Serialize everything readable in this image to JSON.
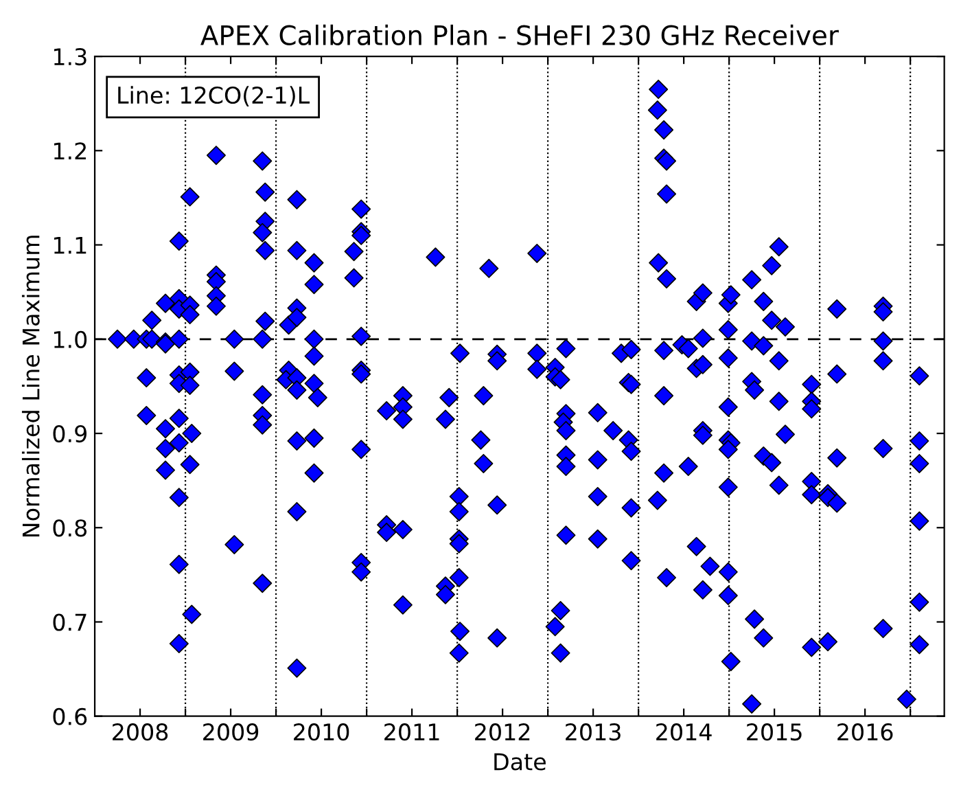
{
  "chart_data": {
    "type": "scatter",
    "title": "APEX Calibration Plan - SHeFI 230 GHz Receiver",
    "xlabel": "Date",
    "ylabel": "Normalized Line Maximum",
    "annotations": [
      "Line: 12CO(2-1)L"
    ],
    "marker": "diamond",
    "grid": false,
    "xlim": [
      2007.5,
      2016.875
    ],
    "ylim": [
      0.6,
      1.3
    ],
    "xticks": [
      {
        "value": 2008,
        "label": "2008"
      },
      {
        "value": 2008.5,
        "label": null
      },
      {
        "value": 2009,
        "label": "2009"
      },
      {
        "value": 2009.5,
        "label": null
      },
      {
        "value": 2010,
        "label": "2010"
      },
      {
        "value": 2010.5,
        "label": null
      },
      {
        "value": 2011,
        "label": "2011"
      },
      {
        "value": 2011.5,
        "label": null
      },
      {
        "value": 2012,
        "label": "2012"
      },
      {
        "value": 2012.5,
        "label": null
      },
      {
        "value": 2013,
        "label": "2013"
      },
      {
        "value": 2013.5,
        "label": null
      },
      {
        "value": 2014,
        "label": "2014"
      },
      {
        "value": 2014.5,
        "label": null
      },
      {
        "value": 2015,
        "label": "2015"
      },
      {
        "value": 2015.5,
        "label": null
      },
      {
        "value": 2016,
        "label": "2016"
      },
      {
        "value": 2016.5,
        "label": null
      }
    ],
    "yticks": [
      0.6,
      0.7,
      0.8,
      0.9,
      {
        "value": 1,
        "label": "1.0"
      },
      1.1,
      1.2,
      1.3
    ],
    "ref_lines": [
      {
        "axis": "y",
        "value": 1.0,
        "color": "#000000",
        "line_style": "dashed"
      },
      {
        "axis": "x",
        "value": 2008.5,
        "color": "#000000",
        "line_style": "dotted"
      },
      {
        "axis": "x",
        "value": 2009.5,
        "color": "#000000",
        "line_style": "dotted"
      },
      {
        "axis": "x",
        "value": 2010.5,
        "color": "#000000",
        "line_style": "dotted"
      },
      {
        "axis": "x",
        "value": 2011.5,
        "color": "#000000",
        "line_style": "dotted"
      },
      {
        "axis": "x",
        "value": 2012.5,
        "color": "#000000",
        "line_style": "dotted"
      },
      {
        "axis": "x",
        "value": 2013.5,
        "color": "#000000",
        "line_style": "dotted"
      },
      {
        "axis": "x",
        "value": 2014.5,
        "color": "#000000",
        "line_style": "dotted"
      },
      {
        "axis": "x",
        "value": 2015.5,
        "color": "#000000",
        "line_style": "dotted"
      },
      {
        "axis": "x",
        "value": 2016.5,
        "color": "#000000",
        "line_style": "dotted"
      }
    ],
    "series": [
      {
        "color": "#0000ff",
        "x": [
          2007.75,
          2007.93,
          2008.07,
          2008.13,
          2008.13,
          2008.07,
          2008.07,
          2008.28,
          2008.28,
          2008.28,
          2008.28,
          2008.28,
          2008.28,
          2008.43,
          2008.43,
          2008.43,
          2008.43,
          2008.43,
          2008.43,
          2008.43,
          2008.43,
          2008.43,
          2008.43,
          2008.43,
          2008.55,
          2008.55,
          2008.55,
          2008.55,
          2008.55,
          2008.57,
          2008.55,
          2008.57,
          2008.84,
          2008.84,
          2008.84,
          2008.84,
          2008.84,
          2009.04,
          2009.04,
          2009.04,
          2009.35,
          2009.38,
          2009.38,
          2009.35,
          2009.38,
          2009.38,
          2009.35,
          2009.35,
          2009.35,
          2009.35,
          2009.35,
          2009.64,
          2009.64,
          2009.61,
          2009.73,
          2009.73,
          2009.73,
          2009.73,
          2009.73,
          2009.73,
          2009.73,
          2009.73,
          2009.73,
          2009.92,
          2009.92,
          2009.92,
          2009.92,
          2009.92,
          2009.96,
          2009.92,
          2009.92,
          2010.36,
          2010.36,
          2010.44,
          2010.44,
          2010.44,
          2010.44,
          2010.44,
          2010.44,
          2010.44,
          2010.44,
          2010.44,
          2010.72,
          2010.72,
          2010.72,
          2010.9,
          2010.9,
          2010.9,
          2010.9,
          2010.9,
          2011.26,
          2011.37,
          2011.41,
          2011.37,
          2011.37,
          2011.53,
          2011.52,
          2011.52,
          2011.52,
          2011.52,
          2011.52,
          2011.53,
          2011.52,
          2011.76,
          2011.79,
          2011.79,
          2011.85,
          2011.94,
          2011.94,
          2011.94,
          2011.94,
          2012.38,
          2012.38,
          2012.38,
          2012.58,
          2012.58,
          2012.64,
          2012.7,
          2012.7,
          2012.67,
          2012.7,
          2012.7,
          2012.7,
          2012.7,
          2012.64,
          2012.58,
          2012.64,
          2013.05,
          2013.05,
          2013.05,
          2013.05,
          2013.22,
          2013.31,
          2013.39,
          2013.42,
          2013.42,
          2013.39,
          2013.42,
          2013.42,
          2013.42,
          2013.72,
          2013.71,
          2013.78,
          2013.78,
          2013.81,
          2013.81,
          2013.72,
          2013.81,
          2013.78,
          2013.78,
          2013.78,
          2013.71,
          2013.81,
          2013.98,
          2014.05,
          2014.05,
          2014.14,
          2014.21,
          2014.21,
          2014.14,
          2014.21,
          2014.21,
          2014.21,
          2014.14,
          2014.29,
          2014.21,
          2014.49,
          2014.52,
          2014.49,
          2014.49,
          2014.49,
          2014.49,
          2014.52,
          2014.49,
          2014.49,
          2014.49,
          2014.49,
          2014.52,
          2014.75,
          2014.75,
          2014.75,
          2014.78,
          2014.78,
          2014.75,
          2014.88,
          2014.88,
          2014.88,
          2014.88,
          2014.97,
          2014.97,
          2014.97,
          2015.05,
          2015.05,
          2015.05,
          2015.05,
          2015.12,
          2015.12,
          2015.41,
          2015.41,
          2015.41,
          2015.41,
          2015.41,
          2015.41,
          2015.59,
          2015.59,
          2015.59,
          2015.69,
          2015.69,
          2015.69,
          2015.69,
          2016.2,
          2016.2,
          2016.2,
          2016.2,
          2016.2,
          2016.2,
          2016.46,
          2016.6,
          2016.6,
          2016.6,
          2016.6,
          2016.6,
          2016.6
        ],
        "values": [
          1.0,
          1.0,
          1.0,
          1.0,
          1.02,
          0.959,
          0.919,
          1.038,
          0.997,
          0.995,
          0.905,
          0.884,
          0.861,
          1.104,
          1.043,
          1.032,
          1.0,
          0.962,
          0.953,
          0.916,
          0.89,
          0.832,
          0.761,
          0.677,
          1.151,
          1.036,
          1.026,
          0.965,
          0.951,
          0.9,
          0.867,
          0.708,
          1.195,
          1.068,
          1.061,
          1.046,
          1.035,
          1.0,
          0.966,
          0.782,
          1.189,
          1.156,
          1.125,
          1.113,
          1.094,
          1.019,
          1.0,
          0.941,
          0.919,
          0.909,
          0.741,
          1.015,
          0.967,
          0.957,
          1.148,
          1.094,
          1.033,
          1.023,
          0.959,
          0.946,
          0.892,
          0.817,
          0.651,
          1.081,
          1.058,
          1.0,
          0.982,
          0.953,
          0.938,
          0.895,
          0.858,
          1.093,
          1.065,
          1.138,
          1.114,
          1.11,
          1.003,
          0.967,
          0.963,
          0.883,
          0.763,
          0.753,
          0.924,
          0.803,
          0.795,
          0.94,
          0.928,
          0.915,
          0.798,
          0.718,
          1.087,
          0.915,
          0.938,
          0.738,
          0.729,
          0.985,
          0.833,
          0.817,
          0.788,
          0.783,
          0.747,
          0.69,
          0.667,
          0.893,
          0.94,
          0.868,
          1.075,
          0.984,
          0.977,
          0.824,
          0.683,
          1.091,
          0.985,
          0.968,
          0.97,
          0.96,
          0.957,
          0.99,
          0.921,
          0.912,
          0.903,
          0.877,
          0.865,
          0.792,
          0.712,
          0.695,
          0.667,
          0.922,
          0.872,
          0.833,
          0.788,
          0.903,
          0.985,
          0.954,
          0.989,
          0.952,
          0.893,
          0.881,
          0.821,
          0.765,
          1.265,
          1.243,
          1.222,
          1.192,
          1.189,
          1.154,
          1.081,
          1.064,
          0.988,
          0.94,
          0.858,
          0.829,
          0.747,
          0.994,
          0.99,
          0.865,
          1.04,
          1.049,
          1.001,
          0.969,
          0.973,
          0.903,
          0.898,
          0.78,
          0.759,
          0.734,
          1.038,
          1.047,
          1.01,
          0.98,
          0.928,
          0.893,
          0.89,
          0.883,
          0.843,
          0.753,
          0.728,
          0.658,
          1.063,
          0.998,
          0.955,
          0.946,
          0.703,
          0.613,
          1.04,
          0.993,
          0.876,
          0.683,
          1.078,
          1.02,
          0.869,
          1.098,
          0.977,
          0.934,
          0.845,
          1.013,
          0.899,
          0.952,
          0.934,
          0.926,
          0.849,
          0.835,
          0.673,
          0.836,
          0.832,
          0.679,
          1.032,
          0.963,
          0.874,
          0.826,
          1.035,
          1.029,
          0.998,
          0.977,
          0.884,
          0.693,
          0.618,
          0.961,
          0.892,
          0.868,
          0.807,
          0.721,
          0.676
        ]
      }
    ]
  }
}
